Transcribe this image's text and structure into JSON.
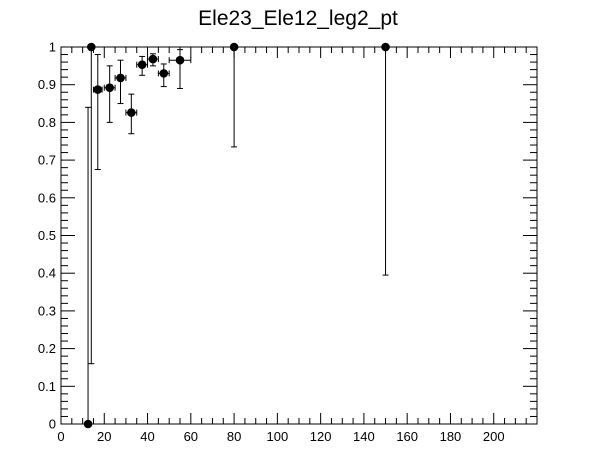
{
  "chart_data": {
    "type": "scatter",
    "title": "Ele23_Ele12_leg2_pt",
    "xlabel": "",
    "ylabel": "",
    "xlim": [
      0,
      220
    ],
    "ylim": [
      0,
      1
    ],
    "grid": false,
    "legend": "none",
    "x_ticks": [
      0,
      20,
      40,
      60,
      80,
      100,
      120,
      140,
      160,
      180,
      200
    ],
    "x_tick_labels": [
      "0",
      "20",
      "40",
      "60",
      "80",
      "100",
      "120",
      "140",
      "160",
      "180",
      "200"
    ],
    "y_ticks": [
      0,
      0.1,
      0.2,
      0.3,
      0.4,
      0.5,
      0.6,
      0.7,
      0.8,
      0.9,
      1
    ],
    "y_tick_labels": [
      "0",
      "0.1",
      "0.2",
      "0.3",
      "0.4",
      "0.5",
      "0.6",
      "0.7",
      "0.8",
      "0.9",
      "1"
    ],
    "points": [
      {
        "x": 12.5,
        "xerr": 0.5,
        "y": 0.0,
        "ylo": 0.0,
        "yhi": 0.84
      },
      {
        "x": 14.0,
        "xerr": 1.0,
        "y": 1.0,
        "ylo": 0.16,
        "yhi": 1.0
      },
      {
        "x": 17.0,
        "xerr": 2.0,
        "y": 0.887,
        "ylo": 0.675,
        "yhi": 0.98
      },
      {
        "x": 22.5,
        "xerr": 2.5,
        "y": 0.892,
        "ylo": 0.8,
        "yhi": 0.95
      },
      {
        "x": 27.5,
        "xerr": 2.5,
        "y": 0.918,
        "ylo": 0.85,
        "yhi": 0.965
      },
      {
        "x": 32.5,
        "xerr": 2.5,
        "y": 0.826,
        "ylo": 0.77,
        "yhi": 0.875
      },
      {
        "x": 37.5,
        "xerr": 2.5,
        "y": 0.953,
        "ylo": 0.925,
        "yhi": 0.975
      },
      {
        "x": 42.5,
        "xerr": 2.5,
        "y": 0.968,
        "ylo": 0.95,
        "yhi": 0.982
      },
      {
        "x": 47.5,
        "xerr": 2.5,
        "y": 0.93,
        "ylo": 0.895,
        "yhi": 0.955
      },
      {
        "x": 55.0,
        "xerr": 5.0,
        "y": 0.965,
        "ylo": 0.89,
        "yhi": 0.993
      },
      {
        "x": 80.0,
        "xerr": 0.0,
        "y": 1.0,
        "ylo": 0.735,
        "yhi": 1.0
      },
      {
        "x": 150.0,
        "xerr": 0.0,
        "y": 1.0,
        "ylo": 0.395,
        "yhi": 1.0
      }
    ]
  }
}
